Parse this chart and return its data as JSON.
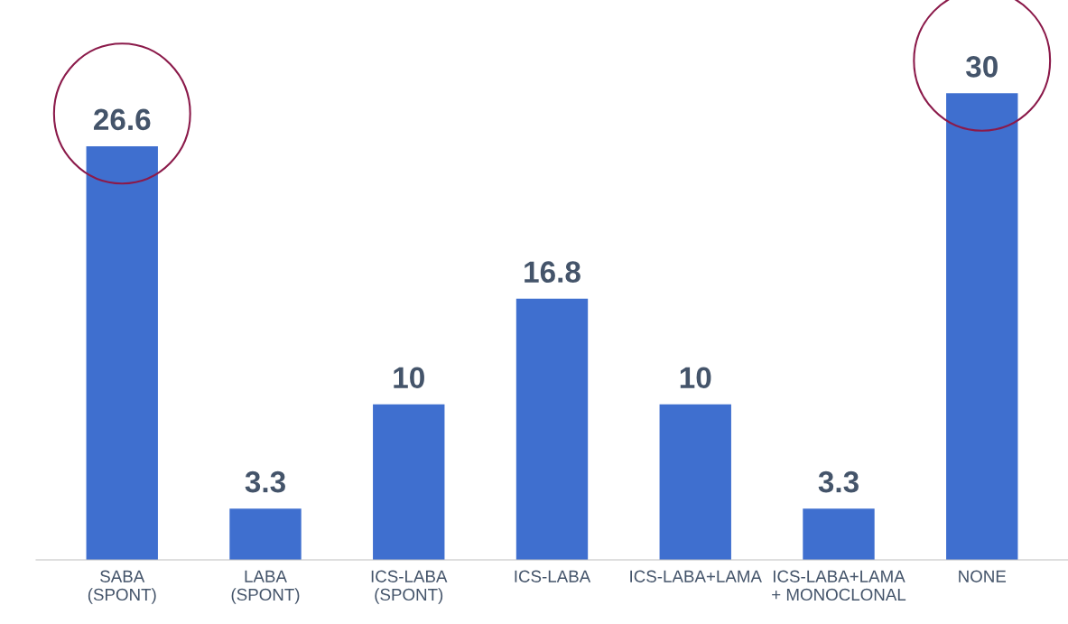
{
  "chart_data": {
    "type": "bar",
    "categories": [
      "SABA\n(SPONT)",
      "LABA\n(SPONT)",
      "ICS-LABA\n(SPONT)",
      "ICS-LABA",
      "ICS-LABA+LAMA",
      "ICS-LABA+LAMA\n+ MONOCLONAL",
      "NONE"
    ],
    "values": [
      26.6,
      3.3,
      10,
      16.8,
      10,
      3.3,
      30
    ],
    "color": "#3f6fcf",
    "data_labels": true,
    "grid": false,
    "legend": false
  }
}
